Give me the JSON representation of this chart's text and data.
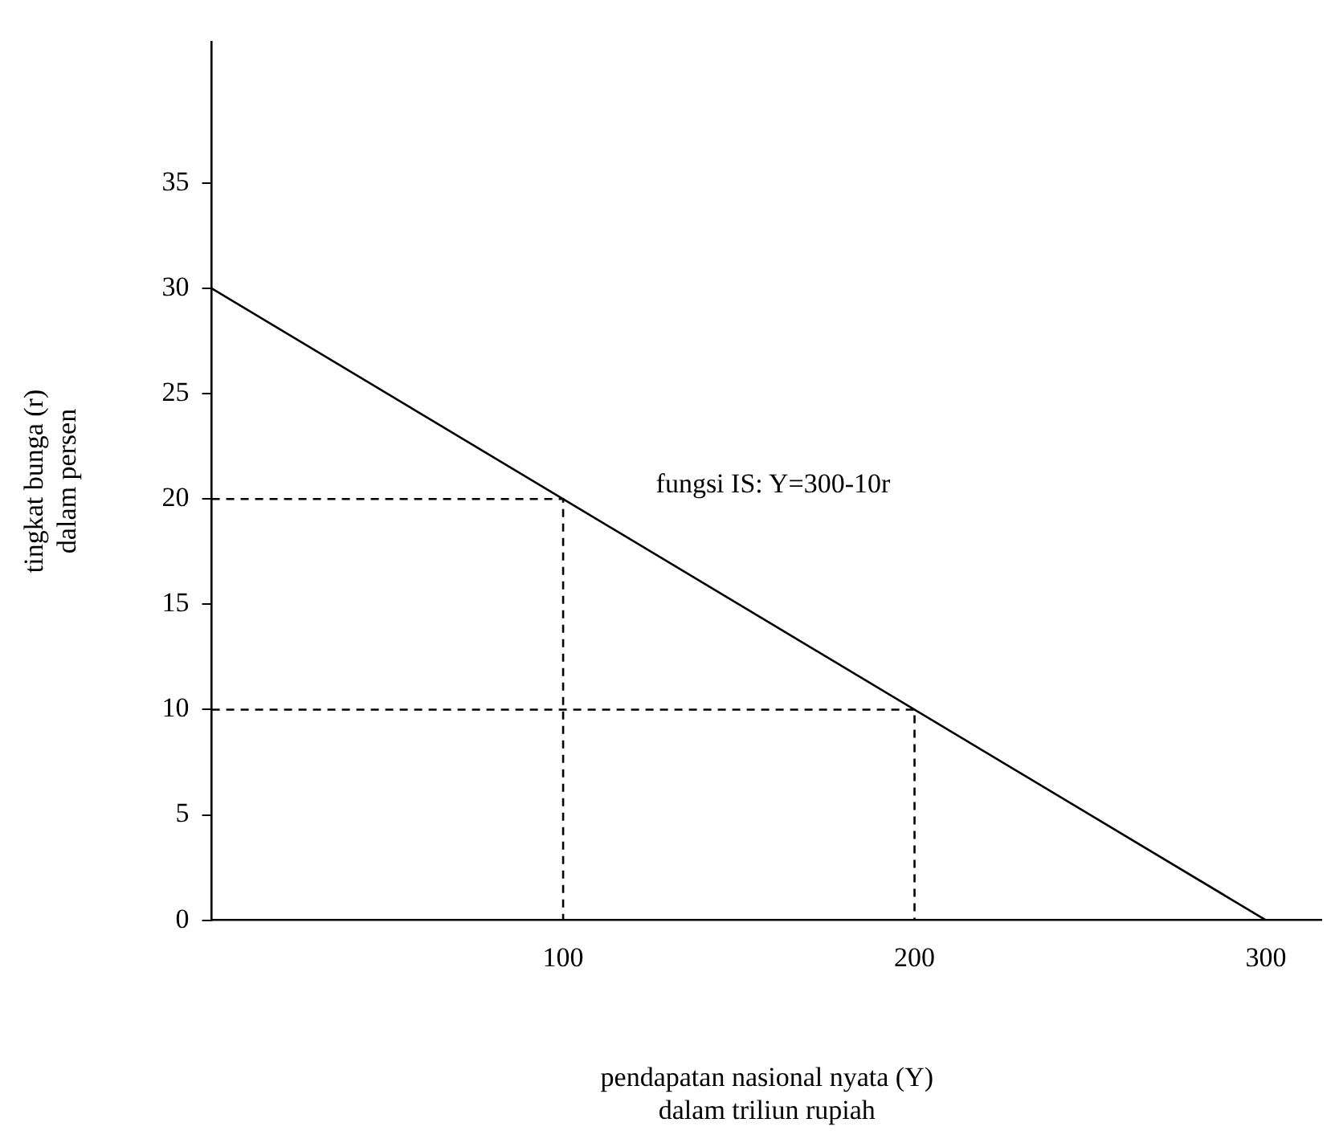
{
  "chart_data": {
    "type": "line",
    "xlabel": "pendapatan nasional nyata (Y)\ndalam triliun rupiah",
    "ylabel": "tingkat bunga (r)\ndalam persen",
    "xlim": [
      0,
      316
    ],
    "ylim": [
      0,
      41.7
    ],
    "xticks": [
      100,
      200,
      300
    ],
    "yticks": [
      0,
      5,
      10,
      15,
      20,
      25,
      30,
      35
    ],
    "grid": false,
    "legend": false,
    "marker": "none",
    "series": [
      {
        "x": [
          0,
          300
        ],
        "values": [
          30,
          0
        ],
        "color": "#000000",
        "line_style": "solid"
      },
      {
        "x": [
          0,
          100,
          100
        ],
        "values": [
          20,
          20,
          0
        ],
        "color": "#000000",
        "line_style": "dashed"
      },
      {
        "x": [
          0,
          200,
          200
        ],
        "values": [
          10,
          10,
          0
        ],
        "color": "#000000",
        "line_style": "dashed"
      }
    ],
    "annotations": [
      "fungsi IS: Y=300-10r"
    ]
  }
}
